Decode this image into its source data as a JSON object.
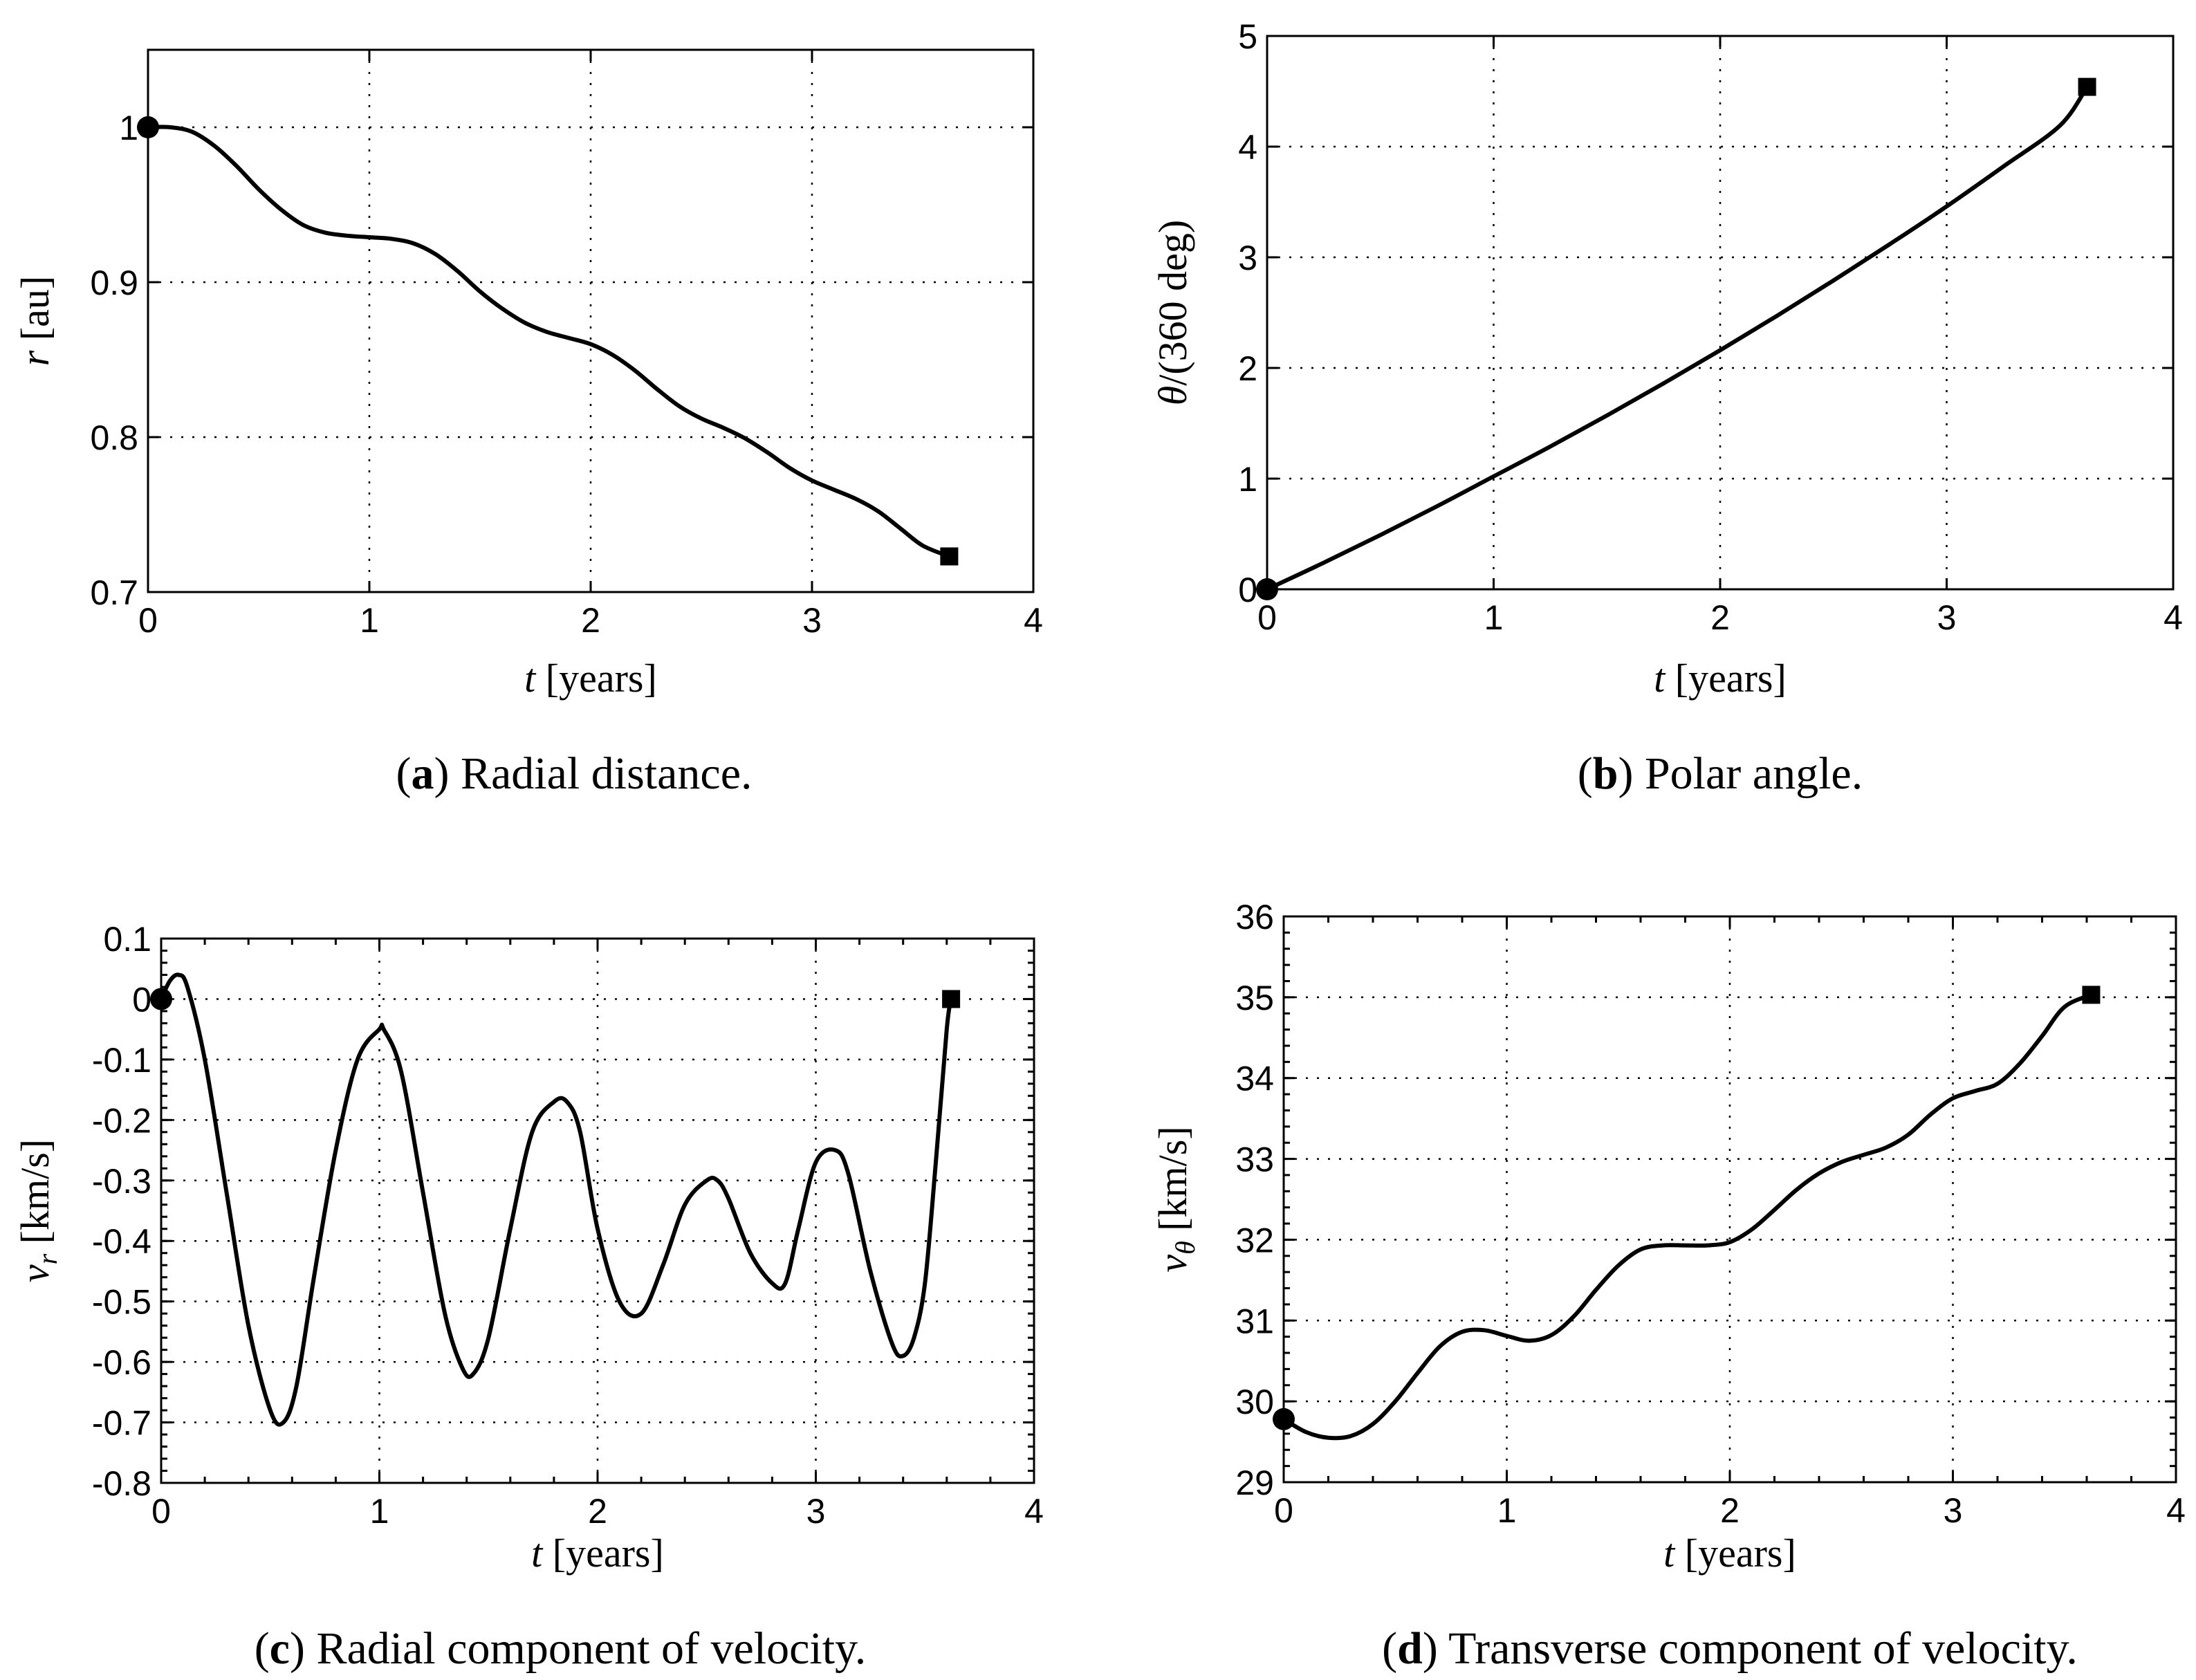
{
  "chart_data": [
    {
      "type": "line",
      "panel": "a",
      "caption_label": "a",
      "caption_text": " Radial distance.",
      "xlabel_var": "t",
      "xlabel_unit": " [years]",
      "ylabel_var": "r",
      "ylabel_unit": " [au]",
      "xlim": [
        0,
        4
      ],
      "ylim": [
        0.7,
        1.05
      ],
      "xticks": [
        0,
        1,
        2,
        3,
        4
      ],
      "xtick_labels": [
        "0",
        "1",
        "2",
        "3",
        "4"
      ],
      "yticks": [
        0.7,
        0.8,
        0.9,
        1.0
      ],
      "ytick_labels": [
        "0.7",
        "0.8",
        "0.9",
        "1"
      ],
      "minor_ticks": false,
      "grid": true,
      "start_marker": "circle",
      "end_marker": "square",
      "series": [
        {
          "name": "r",
          "x": [
            0,
            0.1,
            0.2,
            0.3,
            0.4,
            0.5,
            0.6,
            0.7,
            0.8,
            0.9,
            1.0,
            1.1,
            1.2,
            1.3,
            1.4,
            1.5,
            1.6,
            1.7,
            1.8,
            1.9,
            2.0,
            2.1,
            2.2,
            2.3,
            2.4,
            2.5,
            2.6,
            2.7,
            2.8,
            2.9,
            3.0,
            3.1,
            3.2,
            3.3,
            3.4,
            3.5,
            3.62
          ],
          "y": [
            1.0,
            1.0,
            0.997,
            0.988,
            0.975,
            0.96,
            0.947,
            0.937,
            0.932,
            0.93,
            0.929,
            0.928,
            0.925,
            0.918,
            0.907,
            0.894,
            0.883,
            0.874,
            0.868,
            0.864,
            0.86,
            0.853,
            0.843,
            0.831,
            0.82,
            0.812,
            0.806,
            0.799,
            0.79,
            0.78,
            0.772,
            0.766,
            0.76,
            0.752,
            0.741,
            0.73,
            0.723
          ]
        }
      ]
    },
    {
      "type": "line",
      "panel": "b",
      "caption_label": "b",
      "caption_text": " Polar angle.",
      "xlabel_var": "t",
      "xlabel_unit": " [years]",
      "ylabel_var": "θ",
      "ylabel_unit": "/(360 deg)",
      "xlim": [
        0,
        4
      ],
      "ylim": [
        0,
        5
      ],
      "xticks": [
        0,
        1,
        2,
        3,
        4
      ],
      "xtick_labels": [
        "0",
        "1",
        "2",
        "3",
        "4"
      ],
      "yticks": [
        0,
        1,
        2,
        3,
        4,
        5
      ],
      "ytick_labels": [
        "0",
        "1",
        "2",
        "3",
        "4",
        "5"
      ],
      "minor_ticks": false,
      "grid": true,
      "start_marker": "circle",
      "end_marker": "square",
      "series": [
        {
          "name": "theta",
          "x": [
            0,
            0.25,
            0.5,
            0.75,
            1.0,
            1.25,
            1.5,
            1.75,
            2.0,
            2.25,
            2.5,
            2.75,
            3.0,
            3.25,
            3.5,
            3.62
          ],
          "y": [
            0,
            0.24,
            0.49,
            0.75,
            1.02,
            1.29,
            1.57,
            1.86,
            2.16,
            2.47,
            2.79,
            3.12,
            3.46,
            3.82,
            4.19,
            4.54
          ]
        }
      ]
    },
    {
      "type": "line",
      "panel": "c",
      "caption_label": "c",
      "caption_text": " Radial component of velocity.",
      "xlabel_var": "t",
      "xlabel_unit": " [years]",
      "ylabel_var": "v",
      "ylabel_sub": "r",
      "ylabel_unit": " [km/s]",
      "xlim": [
        0,
        4
      ],
      "ylim": [
        -0.8,
        0.1
      ],
      "xticks": [
        0,
        1,
        2,
        3,
        4
      ],
      "xtick_labels": [
        "0",
        "1",
        "2",
        "3",
        "4"
      ],
      "yticks": [
        -0.8,
        -0.7,
        -0.6,
        -0.5,
        -0.4,
        -0.3,
        -0.2,
        -0.1,
        0,
        0.1
      ],
      "ytick_labels": [
        "-0.8",
        "-0.7",
        "-0.6",
        "-0.5",
        "-0.4",
        "-0.3",
        "-0.2",
        "-0.1",
        "0",
        "0.1"
      ],
      "minor_ticks": true,
      "grid": true,
      "start_marker": "circle",
      "end_marker": "square",
      "series": [
        {
          "name": "v_r",
          "x": [
            0,
            0.04,
            0.08,
            0.12,
            0.2,
            0.3,
            0.4,
            0.5,
            0.56,
            0.62,
            0.7,
            0.8,
            0.9,
            1.0,
            1.02,
            1.1,
            1.2,
            1.3,
            1.38,
            1.43,
            1.5,
            1.6,
            1.7,
            1.8,
            1.86,
            1.92,
            2.0,
            2.1,
            2.2,
            2.3,
            2.4,
            2.5,
            2.55,
            2.6,
            2.7,
            2.8,
            2.86,
            2.92,
            3.0,
            3.09,
            3.15,
            3.25,
            3.35,
            3.4,
            3.45,
            3.5,
            3.55,
            3.6,
            3.62
          ],
          "y": [
            0.0,
            0.03,
            0.04,
            0.02,
            -0.1,
            -0.32,
            -0.54,
            -0.68,
            -0.7,
            -0.64,
            -0.46,
            -0.25,
            -0.1,
            -0.05,
            -0.05,
            -0.12,
            -0.32,
            -0.52,
            -0.61,
            -0.62,
            -0.56,
            -0.38,
            -0.22,
            -0.17,
            -0.17,
            -0.22,
            -0.38,
            -0.5,
            -0.52,
            -0.44,
            -0.34,
            -0.3,
            -0.3,
            -0.33,
            -0.42,
            -0.47,
            -0.47,
            -0.38,
            -0.27,
            -0.25,
            -0.29,
            -0.45,
            -0.57,
            -0.59,
            -0.56,
            -0.47,
            -0.27,
            -0.05,
            0.0
          ]
        }
      ]
    },
    {
      "type": "line",
      "panel": "d",
      "caption_label": "d",
      "caption_text": " Transverse component of velocity.",
      "xlabel_var": "t",
      "xlabel_unit": " [years]",
      "ylabel_var": "v",
      "ylabel_sub": "θ",
      "ylabel_unit": " [km/s]",
      "xlim": [
        0,
        4
      ],
      "ylim": [
        29,
        36
      ],
      "xticks": [
        0,
        1,
        2,
        3,
        4
      ],
      "xtick_labels": [
        "0",
        "1",
        "2",
        "3",
        "4"
      ],
      "yticks": [
        29,
        30,
        31,
        32,
        33,
        34,
        35,
        36
      ],
      "ytick_labels": [
        "29",
        "30",
        "31",
        "32",
        "33",
        "34",
        "35",
        "36"
      ],
      "minor_ticks": true,
      "grid": true,
      "start_marker": "circle",
      "end_marker": "square",
      "series": [
        {
          "name": "v_theta",
          "x": [
            0,
            0.1,
            0.2,
            0.3,
            0.4,
            0.5,
            0.6,
            0.7,
            0.8,
            0.9,
            1.0,
            1.1,
            1.2,
            1.3,
            1.4,
            1.5,
            1.6,
            1.7,
            1.8,
            1.9,
            2.0,
            2.1,
            2.2,
            2.3,
            2.4,
            2.5,
            2.6,
            2.7,
            2.8,
            2.9,
            3.0,
            3.1,
            3.2,
            3.3,
            3.4,
            3.5,
            3.62
          ],
          "y": [
            29.78,
            29.62,
            29.55,
            29.57,
            29.72,
            30.0,
            30.35,
            30.68,
            30.86,
            30.88,
            30.81,
            30.75,
            30.82,
            31.05,
            31.38,
            31.68,
            31.88,
            31.93,
            31.93,
            31.93,
            31.97,
            32.13,
            32.37,
            32.62,
            32.82,
            32.96,
            33.05,
            33.14,
            33.3,
            33.55,
            33.75,
            33.84,
            33.93,
            34.18,
            34.52,
            34.88,
            35.03
          ]
        }
      ]
    }
  ]
}
